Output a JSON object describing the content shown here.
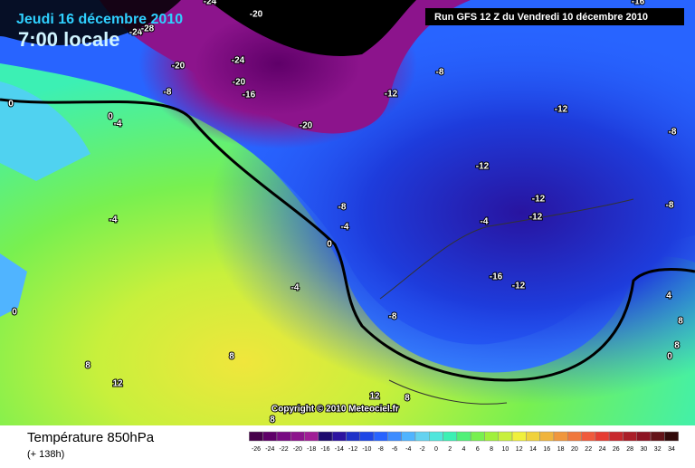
{
  "header": {
    "date": "Jeudi 16 décembre 2010",
    "time": "7:00 locale",
    "run": "Run GFS 12 Z du Vendredi 10 décembre 2010"
  },
  "footer": {
    "title": "Température 850hPa",
    "lead": "(+ 138h)",
    "copyright": "Copyright © 2010 Meteociel.fr"
  },
  "contour_labels": [
    -24,
    -20,
    -24,
    -28,
    -20,
    -24,
    -20,
    -16,
    -8,
    0,
    0,
    -4,
    -20,
    -8,
    -12,
    -12,
    -8,
    -12,
    -12,
    -12,
    -8,
    -8,
    -4,
    -4,
    -4,
    0,
    -4,
    -16,
    -12,
    -8,
    0,
    4,
    8,
    8,
    0,
    8,
    8,
    12,
    12,
    8,
    8,
    8,
    -16
  ],
  "scale": {
    "values": [
      -26,
      -24,
      -22,
      -20,
      -18,
      -16,
      -14,
      -12,
      -10,
      -8,
      -6,
      -4,
      -2,
      0,
      2,
      4,
      6,
      8,
      10,
      12,
      14,
      16,
      18,
      20,
      22,
      24,
      26,
      28,
      30,
      32,
      34
    ],
    "colors": [
      "#46004b",
      "#5f0069",
      "#780a82",
      "#8c148c",
      "#a01e96",
      "#1e0a6e",
      "#2d14a0",
      "#1e32c8",
      "#1e46e6",
      "#2864ff",
      "#3c8cff",
      "#50b4ff",
      "#64d2f0",
      "#50e6dc",
      "#3cf0b4",
      "#50f078",
      "#78f050",
      "#a0f03c",
      "#c8f03c",
      "#f0f03c",
      "#f0d23c",
      "#f0b43c",
      "#f0963c",
      "#f0783c",
      "#f05a3c",
      "#e63c32",
      "#c8282d",
      "#aa1e28",
      "#8c1423",
      "#641419",
      "#320a0a"
    ]
  }
}
